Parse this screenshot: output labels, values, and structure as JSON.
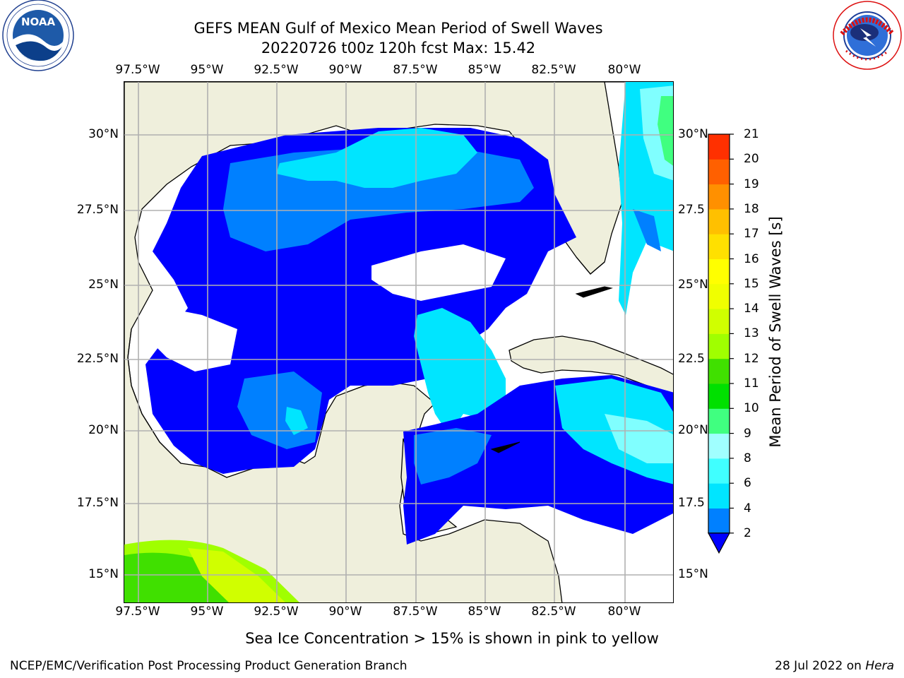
{
  "title_line1": "GEFS MEAN Gulf of Mexico Mean Period of Swell Waves",
  "title_line2": "20220726 t00z 120h fcst   Max: 15.42",
  "lon_ticks": [
    "97.5°W",
    "95°W",
    "92.5°W",
    "90°W",
    "87.5°W",
    "85°W",
    "82.5°W",
    "80°W"
  ],
  "lat_ticks_left": [
    "30°N",
    "27.5°N",
    "25°N",
    "22.5°N",
    "20°N",
    "17.5°N",
    "15°N"
  ],
  "lat_ticks_right": [
    "30°N",
    "27.5",
    "25°N",
    "22.5",
    "20°N",
    "17.5",
    "15°N"
  ],
  "colorbar": {
    "label": "Mean Period of Swell Waves [s]",
    "levels": [
      "2",
      "4",
      "6",
      "8",
      "9",
      "10",
      "11",
      "12",
      "13",
      "14",
      "15",
      "16",
      "17",
      "18",
      "19",
      "20",
      "21"
    ],
    "colors": [
      "#0080ff",
      "#00e5ff",
      "#40ffff",
      "#a0ffff",
      "#40ff80",
      "#00e000",
      "#40e000",
      "#a0ff00",
      "#d0ff00",
      "#f0ff00",
      "#ffff00",
      "#ffe000",
      "#ffc000",
      "#ff9000",
      "#ff6000",
      "#ff3000"
    ],
    "under_color": "#0000ff"
  },
  "footnote": "Sea Ice Concentration > 15% is shown in pink to yellow",
  "credit": "NCEP/EMC/Verification Post Processing Product Generation Branch",
  "date": "28 Jul 2022 on",
  "host": "Hera",
  "logos": {
    "left": "noaa-logo",
    "right": "nws-logo"
  },
  "map_colors": {
    "land": "#efefdc",
    "deep_blue": "#0000ff",
    "mid_blue": "#0080ff",
    "cyan": "#00e5ff",
    "light_cyan": "#80ffff",
    "green": "#40ff80"
  }
}
